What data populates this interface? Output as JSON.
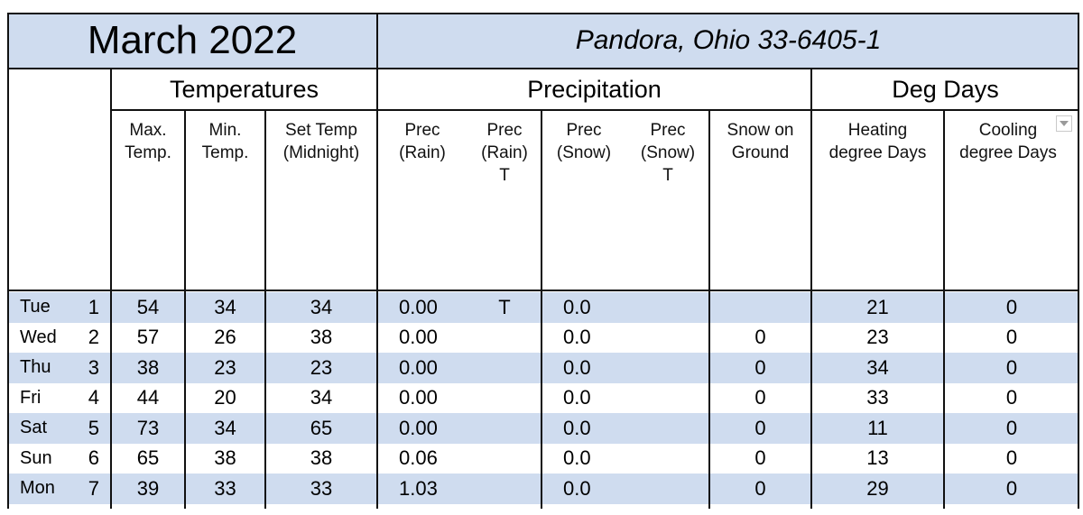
{
  "header": {
    "month": "March 2022",
    "location": "Pandora, Ohio 33-6405-1"
  },
  "groups": {
    "temperatures": "Temperatures",
    "precipitation": "Precipitation",
    "deg_days": "Deg Days"
  },
  "columns": [
    "Max.\nTemp.",
    "Min.\nTemp.",
    "Set Temp\n(Midnight)",
    "Prec\n(Rain)",
    "Prec\n(Rain)\nT",
    "Prec\n(Snow)",
    "Prec\n(Snow)\nT",
    "Snow on\nGround",
    "Heating\ndegree Days",
    "Cooling\ndegree Days"
  ],
  "rows": [
    {
      "day": "Tue",
      "date": "1",
      "max": "54",
      "min": "34",
      "set": "34",
      "rain": "0.00",
      "rain_t": "T",
      "snow": "0.0",
      "snow_t": "",
      "ground": "",
      "heating": "21",
      "cooling": "0"
    },
    {
      "day": "Wed",
      "date": "2",
      "max": "57",
      "min": "26",
      "set": "38",
      "rain": "0.00",
      "rain_t": "",
      "snow": "0.0",
      "snow_t": "",
      "ground": "0",
      "heating": "23",
      "cooling": "0"
    },
    {
      "day": "Thu",
      "date": "3",
      "max": "38",
      "min": "23",
      "set": "23",
      "rain": "0.00",
      "rain_t": "",
      "snow": "0.0",
      "snow_t": "",
      "ground": "0",
      "heating": "34",
      "cooling": "0"
    },
    {
      "day": "Fri",
      "date": "4",
      "max": "44",
      "min": "20",
      "set": "34",
      "rain": "0.00",
      "rain_t": "",
      "snow": "0.0",
      "snow_t": "",
      "ground": "0",
      "heating": "33",
      "cooling": "0"
    },
    {
      "day": "Sat",
      "date": "5",
      "max": "73",
      "min": "34",
      "set": "65",
      "rain": "0.00",
      "rain_t": "",
      "snow": "0.0",
      "snow_t": "",
      "ground": "0",
      "heating": "11",
      "cooling": "0"
    },
    {
      "day": "Sun",
      "date": "6",
      "max": "65",
      "min": "38",
      "set": "38",
      "rain": "0.06",
      "rain_t": "",
      "snow": "0.0",
      "snow_t": "",
      "ground": "0",
      "heating": "13",
      "cooling": "0"
    },
    {
      "day": "Mon",
      "date": "7",
      "max": "39",
      "min": "33",
      "set": "33",
      "rain": "1.03",
      "rain_t": "",
      "snow": "0.0",
      "snow_t": "",
      "ground": "0",
      "heating": "29",
      "cooling": "0"
    }
  ],
  "colors": {
    "band": "#cfdcef",
    "grid": "#111111"
  }
}
